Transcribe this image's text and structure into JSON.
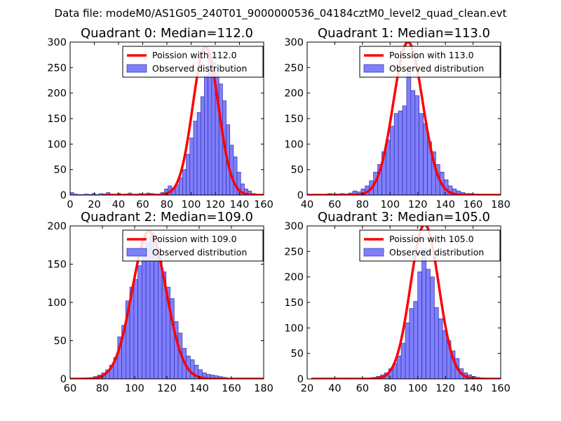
{
  "figure": {
    "suptitle": "Data file: modeM0/AS1G05_240T01_9000000536_04184cztM0_level2_quad_clean.evt"
  },
  "chart_data": [
    {
      "type": "histogram",
      "title": "Quadrant 0: Median=112.0",
      "xlim": [
        0,
        160
      ],
      "ylim": [
        0,
        300
      ],
      "xticks": [
        0,
        20,
        40,
        60,
        80,
        100,
        120,
        140,
        160
      ],
      "yticks": [
        0,
        50,
        100,
        150,
        200,
        250,
        300
      ],
      "bin_width": 3,
      "bins": [
        [
          0,
          5
        ],
        [
          3,
          2
        ],
        [
          6,
          1
        ],
        [
          9,
          1
        ],
        [
          12,
          2
        ],
        [
          15,
          1
        ],
        [
          18,
          3
        ],
        [
          21,
          1
        ],
        [
          24,
          3
        ],
        [
          27,
          2
        ],
        [
          30,
          5
        ],
        [
          33,
          2
        ],
        [
          36,
          1
        ],
        [
          39,
          3
        ],
        [
          42,
          1
        ],
        [
          45,
          2
        ],
        [
          48,
          4
        ],
        [
          51,
          1
        ],
        [
          54,
          2
        ],
        [
          57,
          3
        ],
        [
          60,
          2
        ],
        [
          63,
          4
        ],
        [
          66,
          3
        ],
        [
          69,
          2
        ],
        [
          72,
          1
        ],
        [
          75,
          5
        ],
        [
          78,
          12
        ],
        [
          81,
          18
        ],
        [
          84,
          14
        ],
        [
          87,
          20
        ],
        [
          90,
          34
        ],
        [
          93,
          50
        ],
        [
          96,
          80
        ],
        [
          99,
          112
        ],
        [
          102,
          145
        ],
        [
          105,
          162
        ],
        [
          108,
          193
        ],
        [
          111,
          235
        ],
        [
          114,
          268
        ],
        [
          117,
          260
        ],
        [
          120,
          240
        ],
        [
          123,
          218
        ],
        [
          126,
          185
        ],
        [
          129,
          138
        ],
        [
          132,
          98
        ],
        [
          135,
          75
        ],
        [
          138,
          45
        ],
        [
          141,
          22
        ],
        [
          144,
          12
        ],
        [
          147,
          8
        ],
        [
          150,
          3
        ]
      ],
      "poisson": {
        "lambda": 112.0,
        "peak": 290
      },
      "legend": {
        "line_label": "Poission with 112.0",
        "bar_label": "Observed distribution"
      },
      "colors": {
        "line": "#ff0000",
        "bar_fill": "#7f7fff",
        "bar_edge": "#3030a0"
      }
    },
    {
      "type": "histogram",
      "title": "Quadrant 1: Median=113.0",
      "xlim": [
        40,
        180
      ],
      "ylim": [
        0,
        300
      ],
      "xticks": [
        40,
        60,
        80,
        100,
        120,
        140,
        160,
        180
      ],
      "yticks": [
        0,
        50,
        100,
        150,
        200,
        250,
        300
      ],
      "bin_width": 3,
      "bins": [
        [
          55,
          3
        ],
        [
          58,
          2
        ],
        [
          61,
          2
        ],
        [
          64,
          3
        ],
        [
          67,
          2
        ],
        [
          70,
          4
        ],
        [
          73,
          8
        ],
        [
          76,
          6
        ],
        [
          79,
          12
        ],
        [
          82,
          18
        ],
        [
          85,
          28
        ],
        [
          88,
          45
        ],
        [
          91,
          60
        ],
        [
          94,
          85
        ],
        [
          97,
          108
        ],
        [
          100,
          135
        ],
        [
          103,
          160
        ],
        [
          106,
          165
        ],
        [
          109,
          175
        ],
        [
          112,
          240
        ],
        [
          115,
          205
        ],
        [
          118,
          195
        ],
        [
          121,
          160
        ],
        [
          124,
          140
        ],
        [
          127,
          105
        ],
        [
          130,
          85
        ],
        [
          133,
          60
        ],
        [
          136,
          45
        ],
        [
          139,
          30
        ],
        [
          142,
          18
        ],
        [
          145,
          12
        ],
        [
          148,
          8
        ],
        [
          151,
          5
        ],
        [
          154,
          3
        ],
        [
          157,
          3
        ],
        [
          160,
          2
        ],
        [
          163,
          2
        ]
      ],
      "poisson": {
        "lambda": 113.0,
        "peak": 300
      },
      "legend": {
        "line_label": "Poission with 113.0",
        "bar_label": "Observed distribution"
      },
      "colors": {
        "line": "#ff0000",
        "bar_fill": "#7f7fff",
        "bar_edge": "#3030a0"
      }
    },
    {
      "type": "histogram",
      "title": "Quadrant 2: Median=109.0",
      "xlim": [
        60,
        180
      ],
      "ylim": [
        0,
        200
      ],
      "xticks": [
        60,
        80,
        100,
        120,
        140,
        160,
        180
      ],
      "yticks": [
        0,
        50,
        100,
        150,
        200
      ],
      "bin_width": 2.5,
      "bins": [
        [
          72,
          1
        ],
        [
          74.5,
          3
        ],
        [
          77,
          5
        ],
        [
          79.5,
          8
        ],
        [
          82,
          12
        ],
        [
          84.5,
          18
        ],
        [
          87,
          28
        ],
        [
          89.5,
          55
        ],
        [
          92,
          70
        ],
        [
          94.5,
          102
        ],
        [
          97,
          120
        ],
        [
          99.5,
          130
        ],
        [
          102,
          148
        ],
        [
          104.5,
          160
        ],
        [
          107,
          178
        ],
        [
          109.5,
          190
        ],
        [
          112,
          170
        ],
        [
          114.5,
          155
        ],
        [
          117,
          140
        ],
        [
          119.5,
          120
        ],
        [
          122,
          105
        ],
        [
          124.5,
          75
        ],
        [
          127,
          60
        ],
        [
          129.5,
          40
        ],
        [
          132,
          30
        ],
        [
          134.5,
          25
        ],
        [
          137,
          18
        ],
        [
          139.5,
          12
        ],
        [
          142,
          8
        ],
        [
          144.5,
          6
        ],
        [
          147,
          5
        ],
        [
          149.5,
          4
        ],
        [
          152,
          3
        ],
        [
          154.5,
          2
        ],
        [
          157,
          1
        ],
        [
          159.5,
          1
        ]
      ],
      "poisson": {
        "lambda": 109.0,
        "peak": 193
      },
      "legend": {
        "line_label": "Poission with 109.0",
        "bar_label": "Observed distribution"
      },
      "colors": {
        "line": "#ff0000",
        "bar_fill": "#7f7fff",
        "bar_edge": "#3030a0"
      }
    },
    {
      "type": "histogram",
      "title": "Quadrant 3: Median=105.0",
      "xlim": [
        20,
        160
      ],
      "ylim": [
        0,
        300
      ],
      "xticks": [
        20,
        40,
        60,
        80,
        100,
        120,
        140,
        160
      ],
      "yticks": [
        0,
        50,
        100,
        150,
        200,
        250,
        300
      ],
      "bin_width": 3,
      "bins": [
        [
          64,
          2
        ],
        [
          67,
          3
        ],
        [
          70,
          5
        ],
        [
          73,
          8
        ],
        [
          76,
          12
        ],
        [
          79,
          20
        ],
        [
          82,
          30
        ],
        [
          85,
          45
        ],
        [
          88,
          70
        ],
        [
          91,
          110
        ],
        [
          94,
          138
        ],
        [
          97,
          152
        ],
        [
          100,
          210
        ],
        [
          103,
          255
        ],
        [
          106,
          215
        ],
        [
          109,
          200
        ],
        [
          112,
          140
        ],
        [
          115,
          118
        ],
        [
          118,
          95
        ],
        [
          121,
          75
        ],
        [
          124,
          55
        ],
        [
          127,
          40
        ],
        [
          130,
          20
        ],
        [
          133,
          12
        ],
        [
          136,
          8
        ],
        [
          139,
          5
        ],
        [
          142,
          3
        ],
        [
          145,
          2
        ]
      ],
      "poisson": {
        "lambda": 105.0,
        "peak": 303
      },
      "legend": {
        "line_label": "Poission with 105.0",
        "bar_label": "Observed distribution"
      },
      "colors": {
        "line": "#ff0000",
        "bar_fill": "#7f7fff",
        "bar_edge": "#3030a0"
      }
    }
  ]
}
